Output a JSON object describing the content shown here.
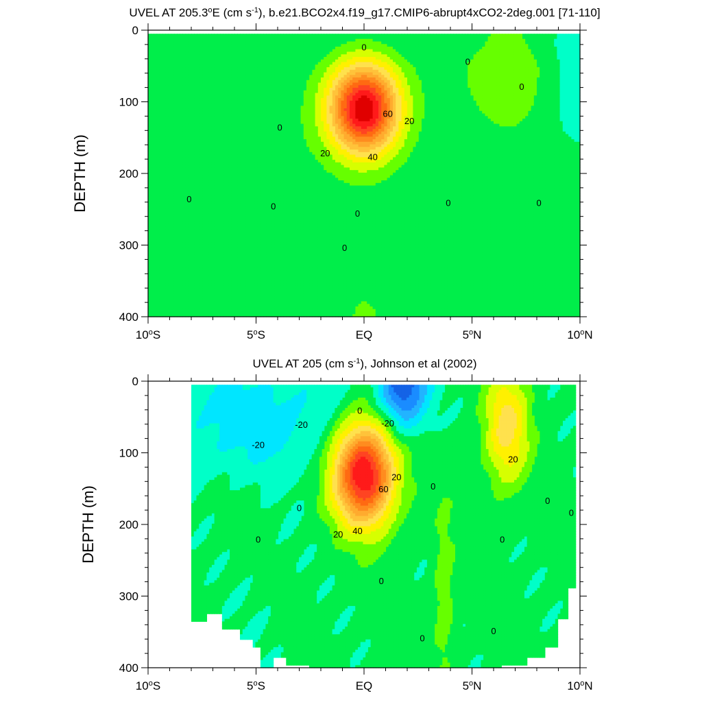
{
  "chart_data": [
    {
      "type": "heatmap",
      "subtype": "filled-contour",
      "title": "UVEL AT 205.3°E (cm s⁻¹), b.e21.BCO2x4.f19_g17.CMIP6-abrupt4xCO2-2deg.001 [71-110]",
      "title_parts": {
        "pre": "UVEL AT 205.3",
        "deg": "o",
        "mid": "E (cm s",
        "sup": "-1",
        "post": "), b.e21.BCO2x4.f19_g17.CMIP6-abrupt4xCO2-2deg.001 [71-110]"
      },
      "xlabel": "",
      "ylabel": "DEPTH (m)",
      "xlim": [
        -10,
        10
      ],
      "ylim": [
        400,
        0
      ],
      "x_ticks": [
        {
          "value": -10,
          "text": "10",
          "sup": "o",
          "hemi": "S"
        },
        {
          "value": -5,
          "text": "5",
          "sup": "o",
          "hemi": "S"
        },
        {
          "value": 0,
          "text": "EQ",
          "sup": "",
          "hemi": ""
        },
        {
          "value": 5,
          "text": "5",
          "sup": "o",
          "hemi": "N"
        },
        {
          "value": 10,
          "text": "10",
          "sup": "o",
          "hemi": "N"
        }
      ],
      "y_ticks": [
        0,
        100,
        200,
        300,
        400
      ],
      "contour_interval": 10,
      "contour_labels": [
        {
          "lat": 0,
          "depth": 25,
          "text": "0"
        },
        {
          "lat": 4.8,
          "depth": 45,
          "text": "0"
        },
        {
          "lat": 7.3,
          "depth": 80,
          "text": "0"
        },
        {
          "lat": -3.9,
          "depth": 137,
          "text": "0"
        },
        {
          "lat": 1.1,
          "depth": 118,
          "text": "60"
        },
        {
          "lat": 2.1,
          "depth": 128,
          "text": "20"
        },
        {
          "lat": 0.4,
          "depth": 178,
          "text": "40"
        },
        {
          "lat": -1.8,
          "depth": 173,
          "text": "20"
        },
        {
          "lat": -8.1,
          "depth": 237,
          "text": "0"
        },
        {
          "lat": -4.2,
          "depth": 247,
          "text": "0"
        },
        {
          "lat": -0.3,
          "depth": 257,
          "text": "0"
        },
        {
          "lat": 3.9,
          "depth": 242,
          "text": "0"
        },
        {
          "lat": 8.1,
          "depth": 242,
          "text": "0"
        },
        {
          "lat": -0.9,
          "depth": 305,
          "text": "0"
        }
      ],
      "bounds": {
        "lat_min": -10,
        "lat_max": 10,
        "depth_min": 5,
        "depth_max": 400
      },
      "features": [
        {
          "kind": "jet",
          "lat": 0,
          "depth": 110,
          "peak": 115,
          "lat_halfwidth": 1.6,
          "depth_halfwidth": 62
        },
        {
          "kind": "tongue",
          "from_depth": 5,
          "lat_centre": 6.6,
          "lat_halfwidth": 2.4,
          "value": 9
        },
        {
          "kind": "deep-jet",
          "lat": 0,
          "depth": 420,
          "lat_halfwidth": 2.0,
          "depth_halfwidth": 120,
          "value": 10
        },
        {
          "kind": "background",
          "lat_range": [
            -10,
            10
          ],
          "depth_range": [
            150,
            400
          ],
          "value": 4
        },
        {
          "kind": "surface-westward",
          "lat_range": [
            -10,
            10
          ],
          "depth_range": [
            5,
            35
          ],
          "value": -4
        },
        {
          "kind": "eastern-westward",
          "lat_range": [
            8.8,
            10
          ],
          "depth_range": [
            0,
            150
          ],
          "value": -12
        }
      ],
      "color_levels": [
        -50,
        -40,
        -30,
        -20,
        -10,
        0,
        10,
        20,
        30,
        40,
        50,
        60,
        70,
        80,
        90,
        100,
        110
      ],
      "colors": [
        "#0f3fb8",
        "#1463e6",
        "#1a8cff",
        "#22b4ff",
        "#00e6ff",
        "#00ffc8",
        "#00ee4a",
        "#66ff00",
        "#d6ff00",
        "#fff000",
        "#ffe14d",
        "#ffc33a",
        "#ffab2e",
        "#ff8c1f",
        "#ff6a12",
        "#ff4422",
        "#ff1a1a",
        "#e00000"
      ]
    },
    {
      "type": "heatmap",
      "subtype": "filled-contour",
      "title": "UVEL AT 205 (cm s⁻¹), Johnson et al (2002)",
      "title_parts": {
        "pre": "UVEL AT 205 (cm s",
        "deg": "",
        "mid": "",
        "sup": "-1",
        "post": "), Johnson et al (2002)"
      },
      "xlabel": "",
      "ylabel": "DEPTH (m)",
      "xlim": [
        -10,
        10
      ],
      "ylim": [
        400,
        0
      ],
      "x_ticks": [
        {
          "value": -10,
          "text": "10",
          "sup": "o",
          "hemi": "S"
        },
        {
          "value": -5,
          "text": "5",
          "sup": "o",
          "hemi": "S"
        },
        {
          "value": 0,
          "text": "EQ",
          "sup": "",
          "hemi": ""
        },
        {
          "value": 5,
          "text": "5",
          "sup": "o",
          "hemi": "N"
        },
        {
          "value": 10,
          "text": "10",
          "sup": "o",
          "hemi": "N"
        }
      ],
      "y_ticks": [
        0,
        100,
        200,
        300,
        400
      ],
      "contour_interval": 10,
      "contour_labels": [
        {
          "lat": -4.9,
          "depth": 90,
          "text": "-20"
        },
        {
          "lat": -2.9,
          "depth": 62,
          "text": "-20"
        },
        {
          "lat": -0.2,
          "depth": 42,
          "text": "0"
        },
        {
          "lat": 1.1,
          "depth": 60,
          "text": "-20"
        },
        {
          "lat": 1.5,
          "depth": 135,
          "text": "20"
        },
        {
          "lat": 0.9,
          "depth": 152,
          "text": "60"
        },
        {
          "lat": -3.0,
          "depth": 178,
          "text": "0"
        },
        {
          "lat": 3.2,
          "depth": 148,
          "text": "0"
        },
        {
          "lat": 6.9,
          "depth": 110,
          "text": "20"
        },
        {
          "lat": 8.5,
          "depth": 168,
          "text": "0"
        },
        {
          "lat": 9.6,
          "depth": 185,
          "text": "0"
        },
        {
          "lat": -0.3,
          "depth": 210,
          "text": "40"
        },
        {
          "lat": -1.2,
          "depth": 215,
          "text": "20"
        },
        {
          "lat": -4.9,
          "depth": 222,
          "text": "0"
        },
        {
          "lat": 6.4,
          "depth": 222,
          "text": "0"
        },
        {
          "lat": 0.8,
          "depth": 280,
          "text": "0"
        },
        {
          "lat": 2.7,
          "depth": 360,
          "text": "0"
        },
        {
          "lat": 6.0,
          "depth": 350,
          "text": "0"
        }
      ],
      "bounds": {
        "lat_min": -8,
        "lat_max": 9.8,
        "depth_min": 5,
        "depth_max": 400
      },
      "bottom_mask": [
        [
          -8,
          335
        ],
        [
          -7.3,
          325
        ],
        [
          -6.6,
          345
        ],
        [
          -5.8,
          360
        ],
        [
          -5.2,
          372
        ],
        [
          -4.8,
          400
        ],
        [
          -4.2,
          385
        ],
        [
          -3.6,
          395
        ],
        [
          -2.5,
          400
        ],
        [
          5.2,
          400
        ],
        [
          6.4,
          395
        ],
        [
          7.6,
          385
        ],
        [
          8.4,
          370
        ],
        [
          9.0,
          330
        ],
        [
          9.5,
          290
        ],
        [
          9.8,
          255
        ]
      ],
      "features": [
        {
          "kind": "jet",
          "lat": 0,
          "depth": 130,
          "peak": 110,
          "lat_halfwidth": 1.4,
          "depth_halfwidth": 70
        },
        {
          "kind": "westward-surface",
          "lat": 1.8,
          "depth": 5,
          "peak": -55,
          "lat_halfwidth": 1.1,
          "depth_halfwidth": 60
        },
        {
          "kind": "westward-region",
          "lat_range": [
            -8,
            -1.3
          ],
          "depth_range": [
            5,
            120
          ],
          "value": -18
        },
        {
          "kind": "eastward-surface",
          "lat": 6.6,
          "depth": 65,
          "peak": 42,
          "lat_halfwidth": 1.0,
          "depth_halfwidth": 80
        },
        {
          "kind": "filament",
          "lat": 3.7,
          "depth_range": [
            180,
            400
          ],
          "value": 14
        },
        {
          "kind": "background",
          "lat_range": [
            -8,
            9.8
          ],
          "depth_range": [
            150,
            400
          ],
          "value": 3
        }
      ],
      "color_levels": [
        -50,
        -40,
        -30,
        -20,
        -10,
        0,
        10,
        20,
        30,
        40,
        50,
        60,
        70,
        80,
        90,
        100,
        110
      ],
      "colors": [
        "#0f3fb8",
        "#1463e6",
        "#1a8cff",
        "#22b4ff",
        "#00e6ff",
        "#00ffc8",
        "#00ee4a",
        "#66ff00",
        "#d6ff00",
        "#fff000",
        "#ffe14d",
        "#ffc33a",
        "#ffab2e",
        "#ff8c1f",
        "#ff6a12",
        "#ff4422",
        "#ff1a1a",
        "#e00000"
      ]
    }
  ]
}
